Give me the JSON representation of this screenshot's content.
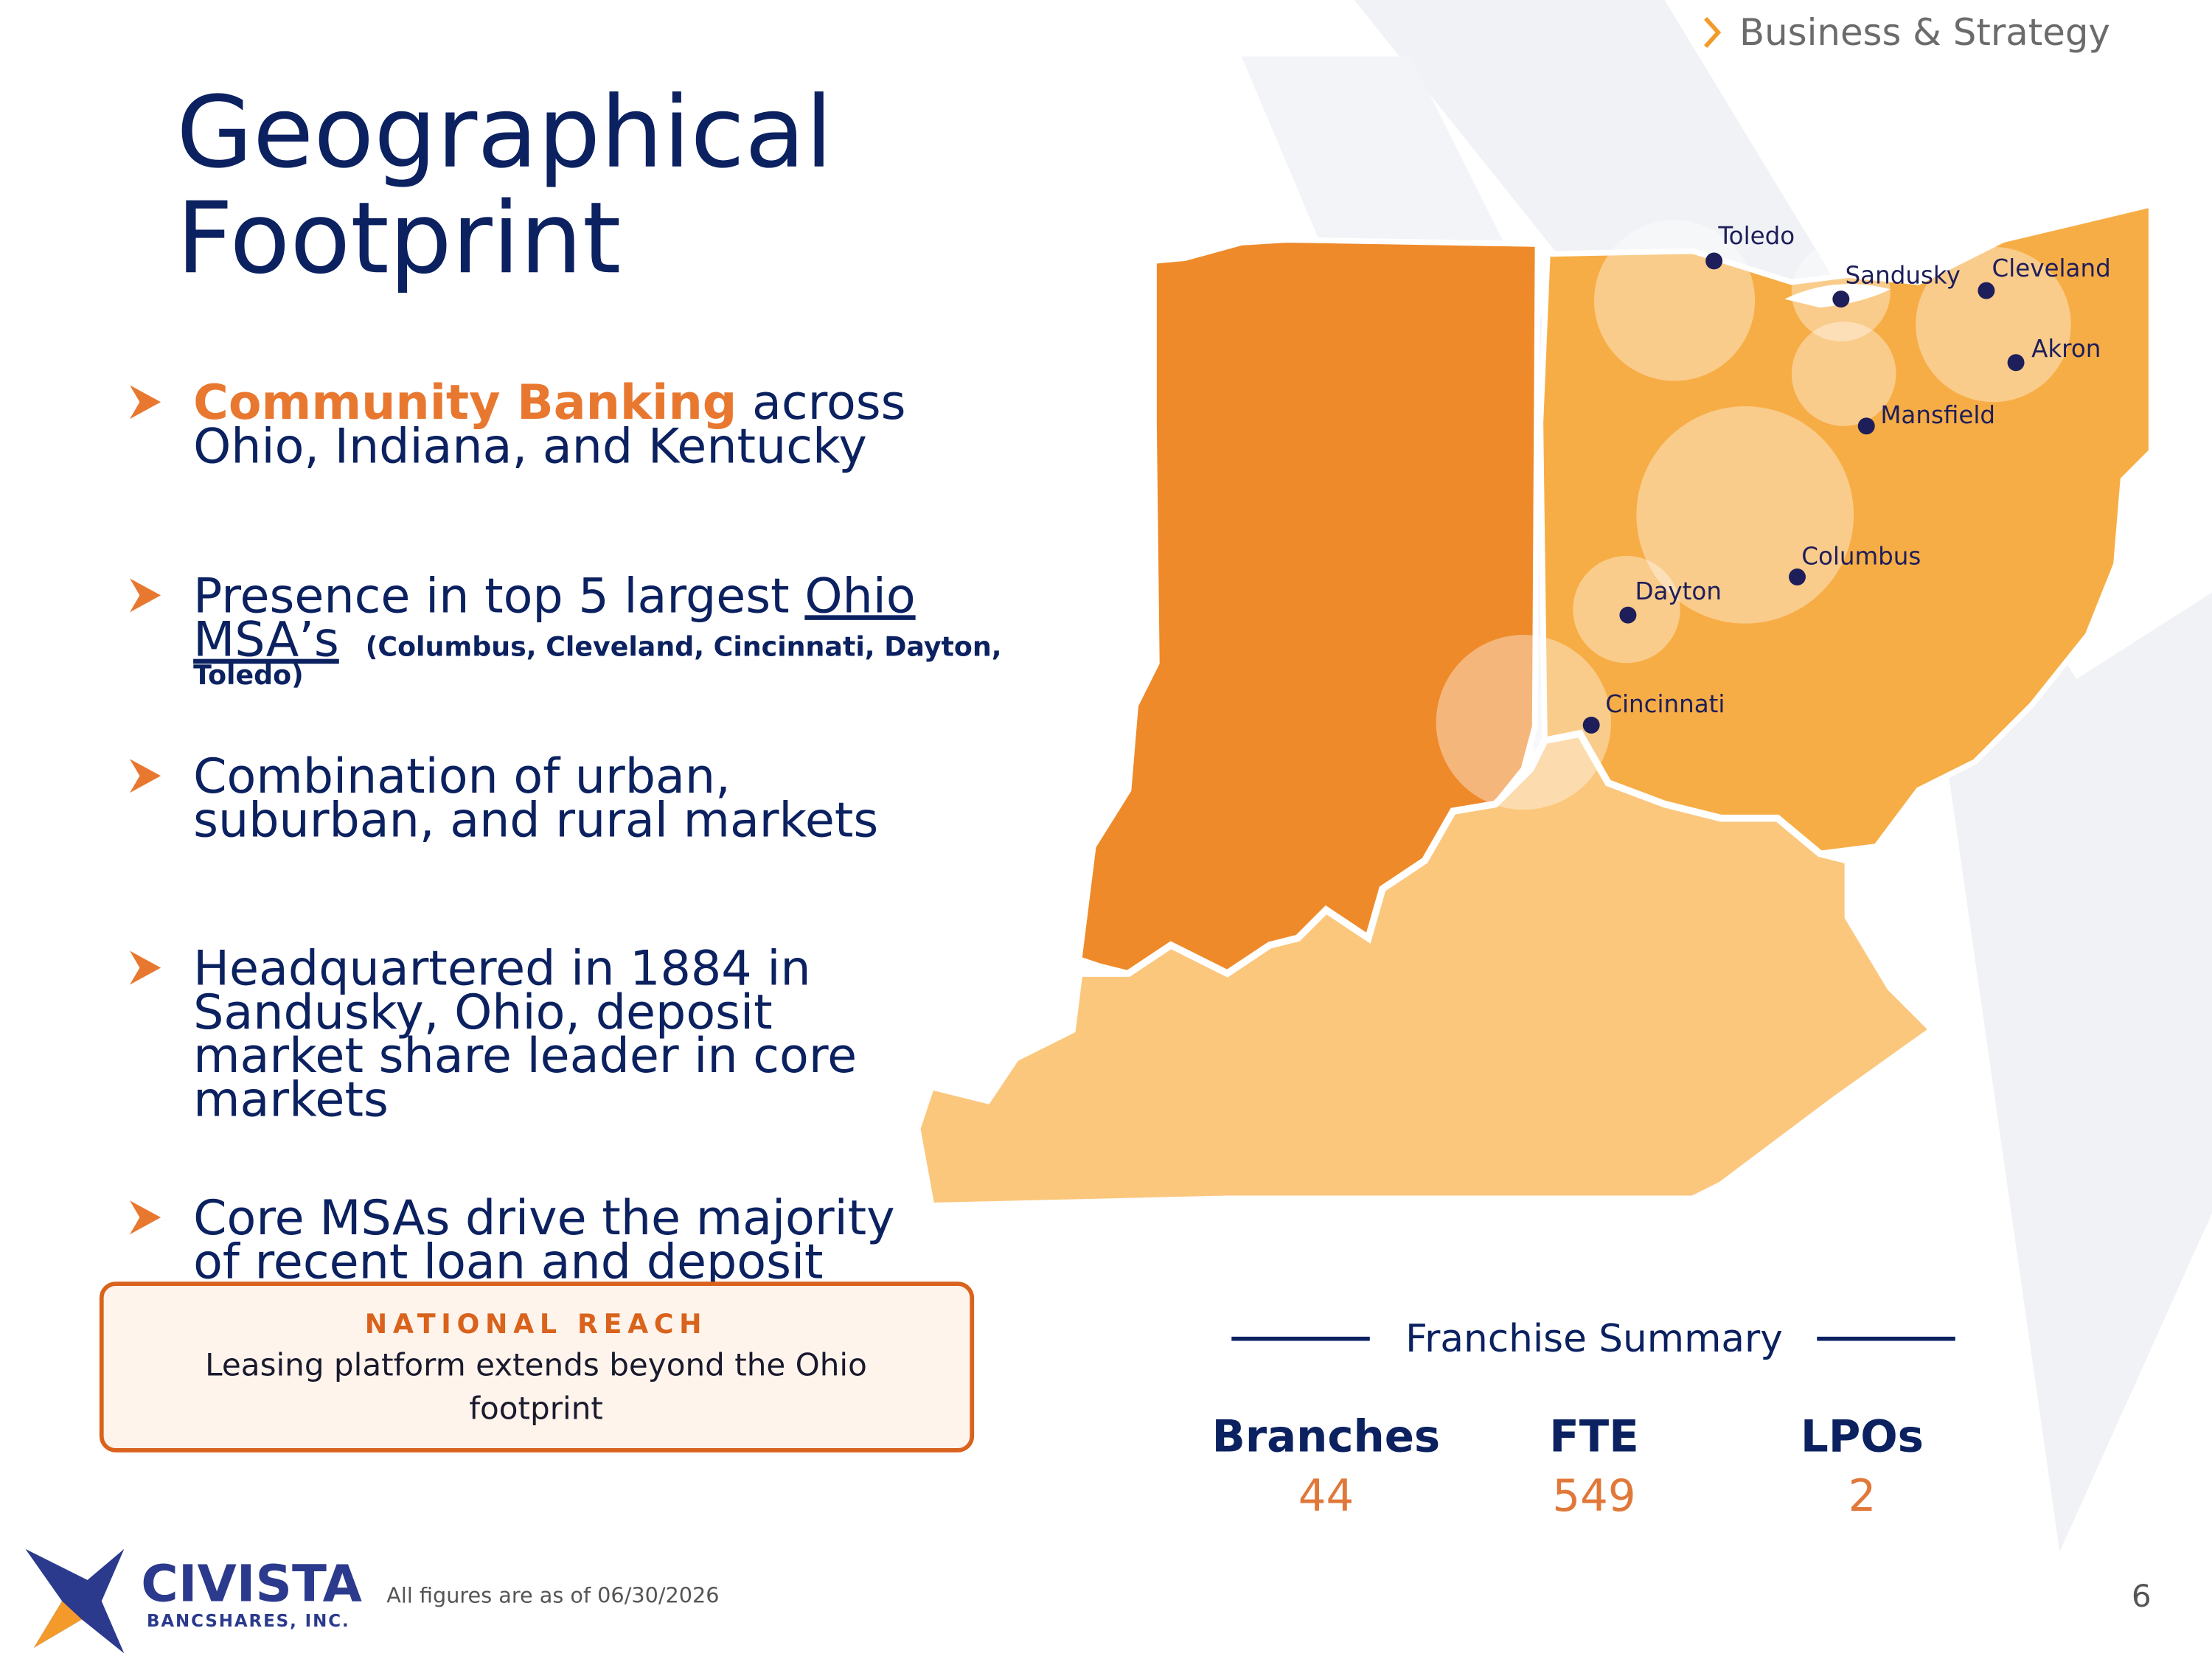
{
  "header": {
    "section": "Business & Strategy",
    "title": [
      "Geographical",
      "Footprint"
    ]
  },
  "bullets": [
    {
      "highlight": "Community Banking",
      "lines": [
        "across",
        "Ohio, Indiana, and Kentucky"
      ]
    },
    {
      "lines": [
        "Presence in top 5 largest"
      ],
      "link": [
        "Ohio",
        "MSA’s"
      ],
      "note": [
        "(Columbus, Cleveland, Cincinnati, Dayton,",
        "Toledo)"
      ]
    },
    {
      "lines": [
        "Combination of urban,",
        "suburban, and rural markets"
      ]
    },
    {
      "lines": [
        "Headquartered in 1884 in",
        "Sandusky, Ohio, deposit",
        "market share leader in core",
        "markets"
      ]
    },
    {
      "lines": [
        "Core MSAs drive the majority",
        "of recent loan and deposit"
      ]
    }
  ],
  "callout": {
    "title": "NATIONAL REACH",
    "lines": [
      "Leasing platform extends beyond the Ohio",
      "footprint"
    ]
  },
  "map": {
    "cities": [
      "Toledo",
      "Sandusky",
      "Cleveland",
      "Akron",
      "Mansfield",
      "Columbus",
      "Dayton",
      "Cincinnati"
    ]
  },
  "summary": {
    "title": "Franchise Summary",
    "items": [
      {
        "label": "Branches",
        "value": 44
      },
      {
        "label": "FTE",
        "value": 549
      },
      {
        "label": "LPOs",
        "value": 2
      }
    ]
  },
  "footer": {
    "logo": "CIVISTA",
    "logo_sub": "BANCSHARES, INC.",
    "note": "All figures are as of 06/30/2026",
    "page": 6
  }
}
